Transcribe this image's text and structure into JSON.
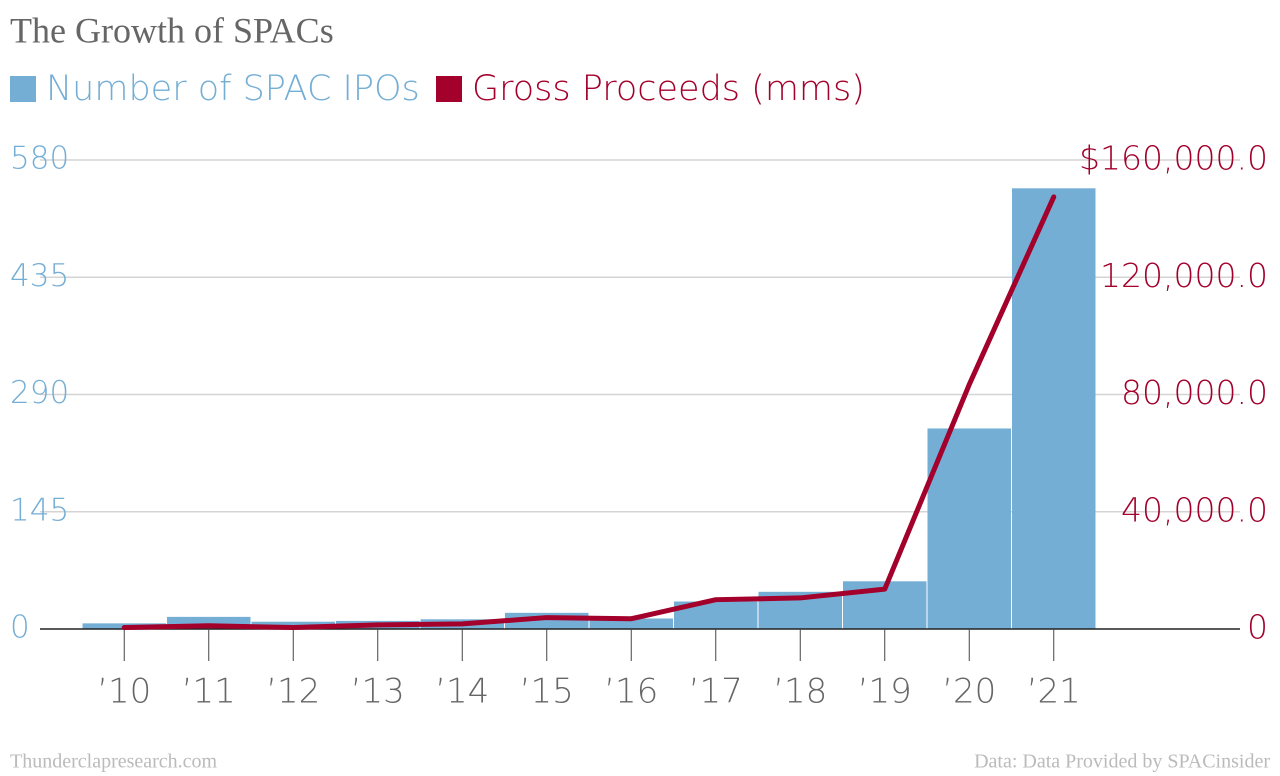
{
  "chart_data": {
    "type": "bar",
    "title": "The Growth of SPACs",
    "categories": [
      "’10",
      "’11",
      "’12",
      "’13",
      "’14",
      "’15",
      "’16",
      "’17",
      "’18",
      "’19",
      "’20",
      "’21"
    ],
    "series": [
      {
        "name": "Number of SPAC IPOs",
        "color": "#75aed5",
        "type": "bar",
        "axis": "y",
        "values": [
          7,
          15,
          9,
          10,
          12,
          20,
          13,
          34,
          46,
          59,
          248,
          545
        ]
      },
      {
        "name": "Gross Proceeds (mms)",
        "color": "#a3002b",
        "type": "line",
        "axis": "y2",
        "values": [
          500,
          1100,
          500,
          1400,
          1750,
          3900,
          3500,
          10000,
          10600,
          13600,
          83400,
          147400
        ]
      }
    ],
    "ylim": [
      0,
      580
    ],
    "yticks": [
      0,
      145,
      290,
      435,
      580
    ],
    "y2lim": [
      0,
      160000
    ],
    "y2ticks": [
      0,
      {
        "value": 40000,
        "label": "40,000.0"
      },
      {
        "value": 80000,
        "label": "80,000.0"
      },
      {
        "value": 120000,
        "label": "120,000.0"
      },
      {
        "value": 160000,
        "label": "$160,000.0"
      }
    ],
    "grid": true,
    "source_left": "Thunderclapresearch.com",
    "source_right": "Data: Data Provided by SPACinsider"
  }
}
